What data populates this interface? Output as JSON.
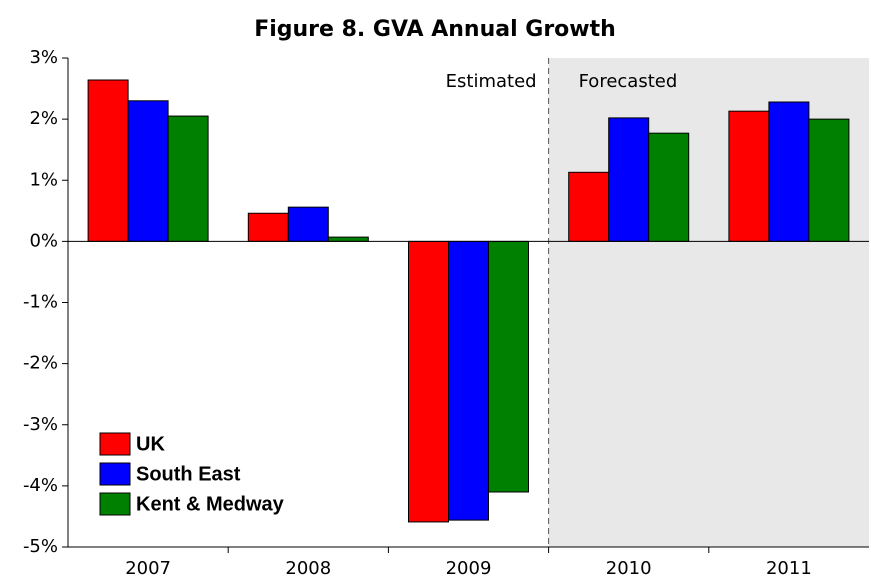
{
  "chart_data": {
    "type": "bar",
    "title": "Figure 8. GVA Annual Growth",
    "categories": [
      "2007",
      "2008",
      "2009",
      "2010",
      "2011"
    ],
    "series": [
      {
        "name": "UK",
        "color": "#ff0000",
        "values": [
          2.64,
          0.46,
          -4.59,
          1.13,
          2.13
        ]
      },
      {
        "name": "South East",
        "color": "#0000ff",
        "values": [
          2.3,
          0.56,
          -4.56,
          2.02,
          2.28
        ]
      },
      {
        "name": "Kent & Medway",
        "color": "#008000",
        "values": [
          2.05,
          0.07,
          -4.1,
          1.77,
          2.0
        ]
      }
    ],
    "ylim": [
      -5,
      3
    ],
    "yticks": [
      {
        "value": -5,
        "label": "-5%"
      },
      {
        "value": -4,
        "label": "-4%"
      },
      {
        "value": -3,
        "label": "-3%"
      },
      {
        "value": -2,
        "label": "-2%"
      },
      {
        "value": -1,
        "label": "-1%"
      },
      {
        "value": 0,
        "label": "0%"
      },
      {
        "value": 1,
        "label": "1%"
      },
      {
        "value": 2,
        "label": "2%"
      },
      {
        "value": 3,
        "label": "3%"
      }
    ],
    "annotations": [
      "Estimated",
      "Forecasted"
    ],
    "grid": false,
    "legend": "lower left"
  }
}
